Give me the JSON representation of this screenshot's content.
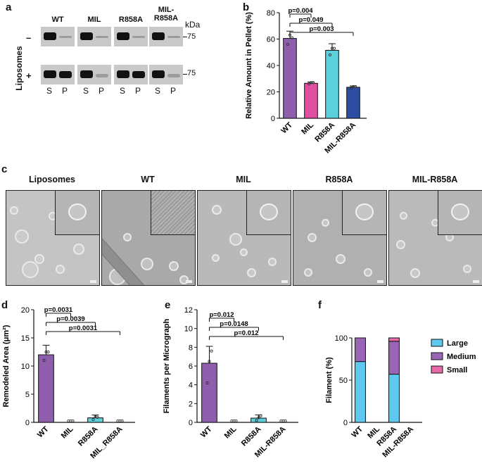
{
  "panels": {
    "a": {
      "letter": "a",
      "side_label": "Liposomes",
      "minus": "–",
      "plus": "+",
      "columns": [
        "WT",
        "MIL",
        "R858A",
        "MIL-\nR858A"
      ],
      "lanes": [
        "S",
        "P"
      ],
      "unit": "kDa",
      "marker_top": "75",
      "marker_bottom": "75"
    },
    "b": {
      "letter": "b"
    },
    "c": {
      "letter": "c",
      "titles": [
        "Liposomes",
        "WT",
        "MIL",
        "R858A",
        "MIL-R858A"
      ]
    },
    "d": {
      "letter": "d"
    },
    "e": {
      "letter": "e"
    },
    "f": {
      "letter": "f"
    }
  },
  "chart_data": [
    {
      "panel": "b",
      "type": "bar",
      "categories": [
        "WT",
        "MIL",
        "R858A",
        "MIL-R858A"
      ],
      "values": [
        60.5,
        26.5,
        51.5,
        23.5
      ],
      "errors": [
        5.5,
        1.0,
        5.0,
        1.0
      ],
      "points": [
        [
          56,
          63,
          61
        ],
        [
          26,
          27,
          27
        ],
        [
          48,
          53,
          53
        ],
        [
          23,
          24,
          24
        ]
      ],
      "colors": [
        "#8e5dac",
        "#e04fa0",
        "#5ccfdc",
        "#2c4da1"
      ],
      "ylabel": "Relative Amount in Pellet (%)",
      "ylim": [
        0,
        80
      ],
      "yticks": [
        0,
        20,
        40,
        60,
        80
      ],
      "significance": [
        {
          "from": 0,
          "to": 1,
          "label": "p=0.004"
        },
        {
          "from": 0,
          "to": 2,
          "label": "p=0.049"
        },
        {
          "from": 0,
          "to": 3,
          "label": "p=0.003"
        }
      ]
    },
    {
      "panel": "d",
      "type": "bar",
      "categories": [
        "WT",
        "MIL",
        "R858A",
        "MIL_R858A"
      ],
      "values": [
        12.0,
        0.0,
        0.8,
        0.0
      ],
      "errors": [
        1.7,
        0.0,
        0.5,
        0.0
      ],
      "points": [
        [
          11,
          12.5,
          12.5
        ],
        [
          0,
          0,
          0
        ],
        [
          0.5,
          1.0,
          0.9
        ],
        [
          0,
          0,
          0
        ]
      ],
      "colors": [
        "#8e5dac",
        "#e04fa0",
        "#5ccfdc",
        "#2c4da1"
      ],
      "ylabel": "Remodeled Area (μm²)",
      "ylim": [
        0,
        20
      ],
      "yticks": [
        0,
        5,
        10,
        15,
        20
      ],
      "significance": [
        {
          "from": 0,
          "to": 1,
          "label": "p=0.0031"
        },
        {
          "from": 0,
          "to": 2,
          "label": "p=0.0039"
        },
        {
          "from": 0,
          "to": 3,
          "label": "p=0.0031"
        }
      ]
    },
    {
      "panel": "e",
      "type": "bar",
      "categories": [
        "WT",
        "MIL",
        "R858A",
        "MIL-R858A"
      ],
      "values": [
        6.3,
        0.0,
        0.45,
        0.0
      ],
      "errors": [
        1.8,
        0.0,
        0.35,
        0.0
      ],
      "points": [
        [
          4.2,
          6.5,
          7.6
        ],
        [
          0,
          0,
          0
        ],
        [
          0.2,
          0.5,
          0.7
        ],
        [
          0,
          0,
          0
        ]
      ],
      "colors": [
        "#8e5dac",
        "#e04fa0",
        "#5ccfdc",
        "#2c4da1"
      ],
      "ylabel": "Filaments per Micrograph",
      "ylim": [
        0,
        12
      ],
      "yticks": [
        0,
        2,
        4,
        6,
        8,
        10,
        12
      ],
      "significance": [
        {
          "from": 0,
          "to": 1,
          "label": "p=0.012"
        },
        {
          "from": 0,
          "to": 2,
          "label": "p=0.0148"
        },
        {
          "from": 0,
          "to": 3,
          "label": "p=0.012"
        }
      ]
    },
    {
      "panel": "f",
      "type": "bar",
      "stacked": true,
      "categories": [
        "WT",
        "MIL",
        "R858A",
        "MIL-R858A"
      ],
      "series": [
        {
          "name": "Large",
          "color": "#5fc8ef",
          "values": [
            72,
            0,
            57,
            0
          ]
        },
        {
          "name": "Medium",
          "color": "#9866b4",
          "values": [
            28,
            0,
            39,
            0
          ]
        },
        {
          "name": "Small",
          "color": "#e56aa6",
          "values": [
            0,
            0,
            4,
            0
          ]
        }
      ],
      "ylabel": "Filament (%)",
      "ylim": [
        0,
        100
      ],
      "yticks": [
        0,
        50,
        100
      ],
      "legend": "right"
    }
  ]
}
